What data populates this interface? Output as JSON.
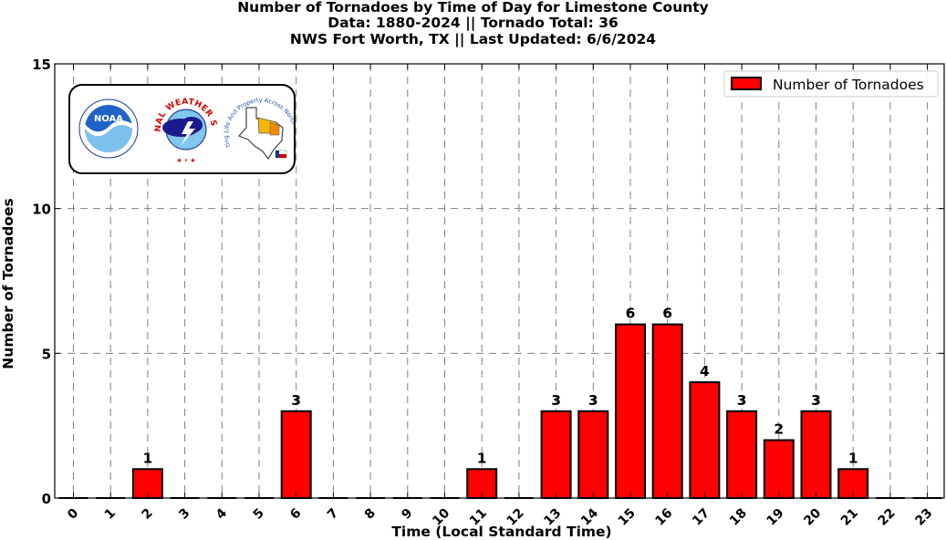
{
  "title_lines": [
    "Number of Tornadoes by Time of Day for Limestone County",
    "Data: 1880-2024 || Tornado Total: 36",
    "NWS Fort Worth, TX || Last Updated: 6/6/2024"
  ],
  "logos": {
    "noaa_text": "NOAA",
    "nws_text": "NATIONAL WEATHER SERVICE",
    "fwd_text": "Protecting Life And Property Across North Texas"
  },
  "colors": {
    "bar": "#ff0000",
    "edge": "#000000",
    "grid": "#808080"
  },
  "chart_data": {
    "type": "bar",
    "title": "Number of Tornadoes by Time of Day for Limestone County",
    "xlabel": "Time (Local Standard Time)",
    "ylabel": "Number of Tornadoes",
    "categories": [
      "0",
      "1",
      "2",
      "3",
      "4",
      "5",
      "6",
      "7",
      "8",
      "9",
      "10",
      "11",
      "12",
      "13",
      "14",
      "15",
      "16",
      "17",
      "18",
      "19",
      "20",
      "21",
      "22",
      "23"
    ],
    "series": [
      {
        "name": "Number of Tornadoes",
        "values": [
          0,
          0,
          1,
          0,
          0,
          0,
          3,
          0,
          0,
          0,
          0,
          1,
          0,
          3,
          3,
          6,
          6,
          4,
          3,
          2,
          3,
          1,
          0,
          0
        ]
      }
    ],
    "ylim": [
      0,
      15
    ],
    "yticks": [
      0,
      5,
      10,
      15
    ],
    "grid": true,
    "legend_position": "top-right"
  }
}
